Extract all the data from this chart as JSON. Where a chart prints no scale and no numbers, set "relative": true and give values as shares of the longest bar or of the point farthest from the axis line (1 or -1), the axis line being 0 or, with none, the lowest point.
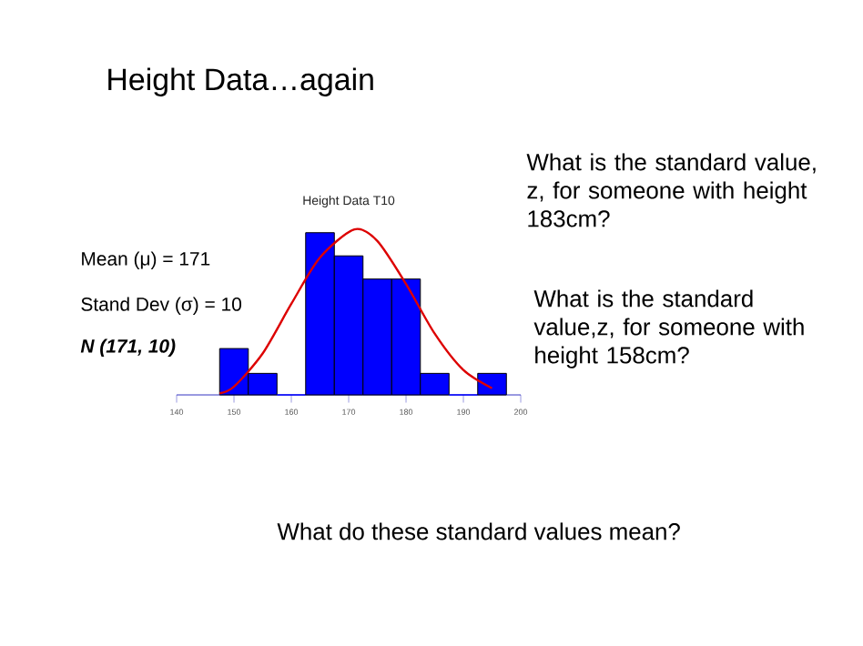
{
  "chart_data": {
    "type": "histogram",
    "title": "Height Data T10",
    "relative": true,
    "bins": [
      147.5,
      152.5,
      157.5,
      162.5,
      167.5,
      172.5,
      177.5,
      182.5,
      187.5,
      192.5,
      197.5
    ],
    "values": [
      0.28,
      0.13,
      0,
      0.98,
      0.84,
      0.7,
      0.7,
      0.13,
      0,
      0.13
    ],
    "color": "#0000ff",
    "series": [
      {
        "type": "line",
        "color": "#dd0000",
        "x": [
          147.5,
          150,
          155,
          160,
          165,
          171,
          175,
          180,
          185,
          190,
          195
        ],
        "values": [
          0.01,
          0.05,
          0.25,
          0.55,
          0.83,
          1.0,
          0.93,
          0.67,
          0.37,
          0.15,
          0.04
        ]
      }
    ],
    "xlim": [
      140,
      200
    ],
    "xticks": [
      140,
      150,
      160,
      170,
      180,
      190,
      200
    ],
    "annotations": [
      "Height Data…again",
      "What is the standard value, z, for someone with height 183cm?",
      "What is the standard value,z, for someone with height 158cm?",
      "Mean (μ) =  171",
      "Stand Dev (σ) = 10",
      "N (171, 10)",
      "What do these standard values mean?"
    ]
  }
}
